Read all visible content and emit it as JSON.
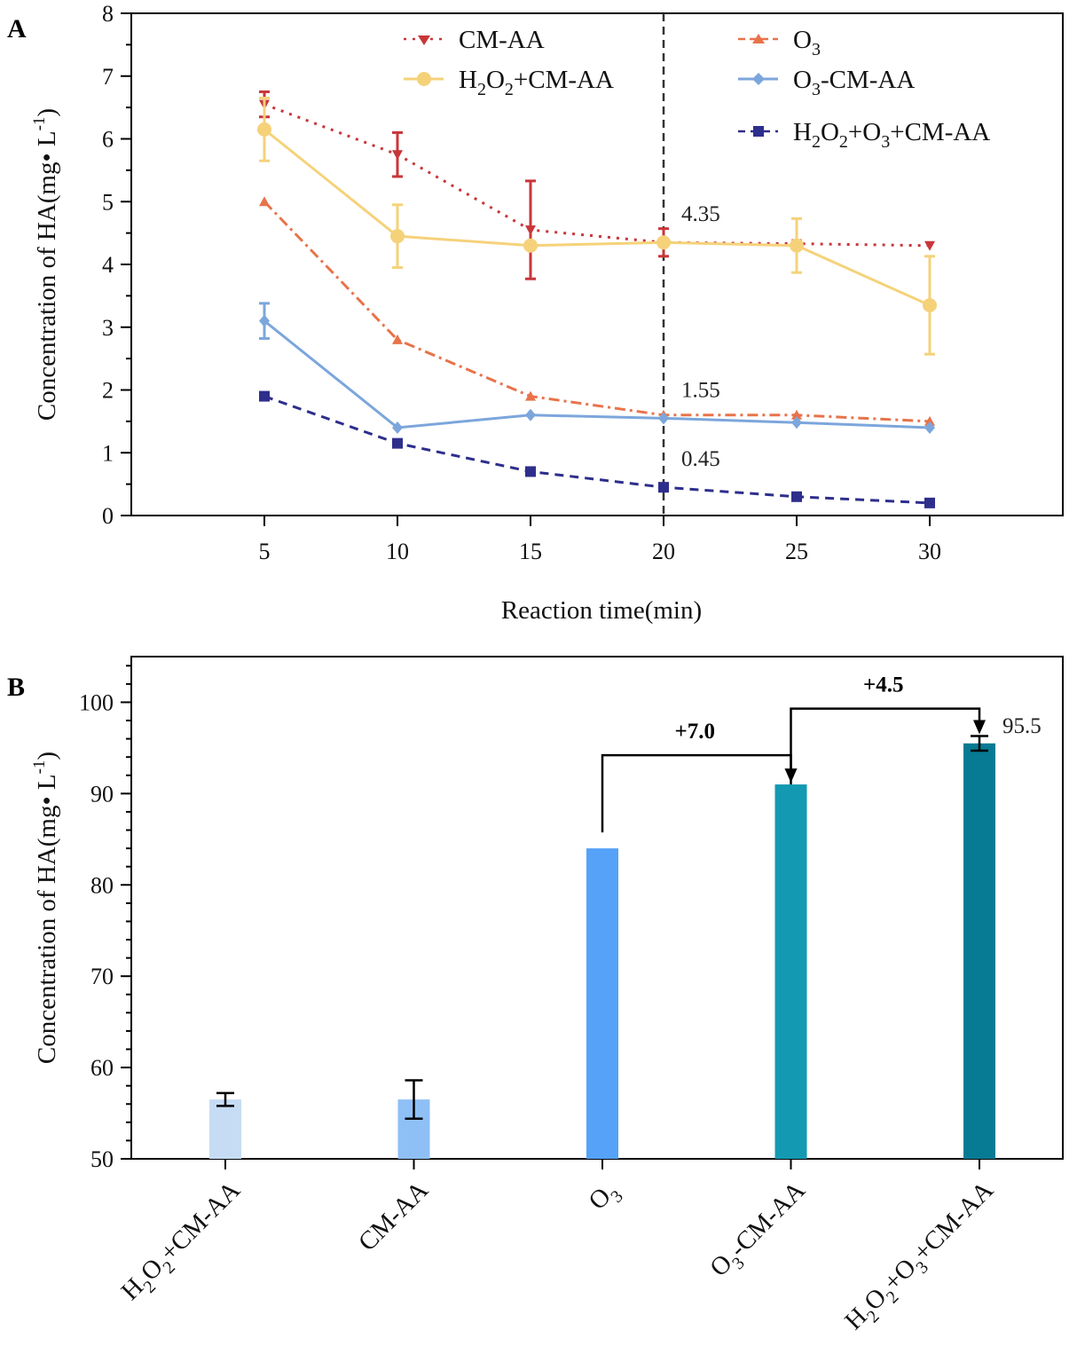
{
  "chart_data": [
    {
      "panel": "A",
      "type": "line",
      "xlabel": "Reaction time(min)",
      "ylabel": "Concentration of HA(mg• L⁻¹)",
      "x": [
        5,
        10,
        15,
        20,
        25,
        30
      ],
      "xlim": [
        0,
        35
      ],
      "ylim": [
        0,
        8
      ],
      "xticks": [
        5,
        10,
        15,
        20,
        25,
        30
      ],
      "yticks": [
        0,
        1,
        2,
        3,
        4,
        5,
        6,
        7,
        8
      ],
      "vline_x": 20,
      "series": [
        {
          "name": "CM-AA",
          "color": "#c8363a",
          "dash": "3,7",
          "marker": "tri-down",
          "values": [
            6.55,
            5.75,
            4.55,
            4.35,
            4.33,
            4.3
          ],
          "errors": [
            0.2,
            0.35,
            0.78,
            0.22,
            0,
            0
          ]
        },
        {
          "name": "H₂O₂+CM-AA",
          "color": "#f5d27a",
          "dash": "",
          "marker": "circle",
          "values": [
            6.15,
            4.45,
            4.3,
            4.35,
            4.3,
            3.35
          ],
          "errors": [
            0.5,
            0.5,
            0,
            0,
            0.43,
            0.78
          ]
        },
        {
          "name": "O₃",
          "color": "#e8734a",
          "dash": "12,5,3,5",
          "marker": "tri-up",
          "values": [
            5.0,
            2.8,
            1.9,
            1.6,
            1.6,
            1.5
          ],
          "errors": [
            0,
            0,
            0,
            0,
            0,
            0
          ]
        },
        {
          "name": "O₃-CM-AA",
          "color": "#7ca6dc",
          "dash": "",
          "marker": "diamond",
          "values": [
            3.1,
            1.4,
            1.6,
            1.55,
            1.48,
            1.4
          ],
          "errors": [
            0.28,
            0,
            0,
            0,
            0,
            0
          ]
        },
        {
          "name": "H₂O₂+O₃+CM-AA",
          "color": "#2e2e8c",
          "dash": "10,7",
          "marker": "square",
          "values": [
            1.9,
            1.15,
            0.7,
            0.45,
            0.3,
            0.2
          ],
          "errors": [
            0,
            0,
            0,
            0,
            0,
            0
          ]
        }
      ],
      "annotations": [
        {
          "text": "4.35",
          "x": 20,
          "y": 4.35
        },
        {
          "text": "1.55",
          "x": 20,
          "y": 1.55
        },
        {
          "text": "0.45",
          "x": 20,
          "y": 0.45
        }
      ]
    },
    {
      "panel": "B",
      "type": "bar",
      "ylabel": "Concentration of HA(mg• L⁻¹)",
      "categories": [
        "H₂O₂+CM-AA",
        "CM-AA",
        "O₃",
        "O₃-CM-AA",
        "H₂O₂+O₃+CM-AA"
      ],
      "values": [
        56.5,
        56.5,
        84.0,
        91.0,
        95.5
      ],
      "errors": [
        0.7,
        2.1,
        0,
        0,
        0.8
      ],
      "colors": [
        "#c6dcf4",
        "#8ec0f6",
        "#55a2f8",
        "#1399b2",
        "#067b93"
      ],
      "ylim": [
        50,
        105
      ],
      "yticks": [
        50,
        60,
        70,
        80,
        90,
        100
      ],
      "value_label": "95.5",
      "comparisons": [
        {
          "from": 2,
          "to": 3,
          "label": "+7.0"
        },
        {
          "from": 3,
          "to": 4,
          "label": "+4.5"
        }
      ]
    }
  ]
}
